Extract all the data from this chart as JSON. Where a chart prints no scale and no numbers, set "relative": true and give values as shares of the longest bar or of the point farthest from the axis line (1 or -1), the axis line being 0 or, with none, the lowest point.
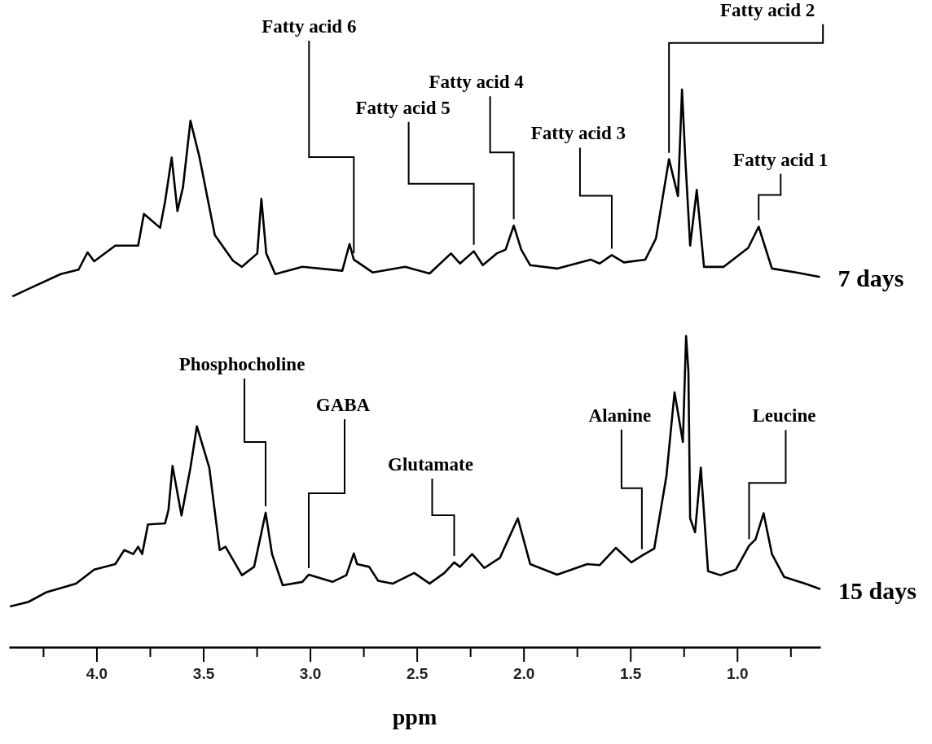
{
  "chart_data": {
    "type": "line",
    "xlabel": "ppm",
    "relative": true,
    "xlim": [
      4.41,
      0.61
    ],
    "xticks": [
      {
        "value": 4.25,
        "label": null
      },
      "4.0",
      {
        "value": 3.75,
        "label": null
      },
      {
        "value": 3.5,
        "label": "3.5"
      },
      {
        "value": 3.25,
        "label": null
      },
      {
        "value": 3.0,
        "label": "3.0"
      },
      {
        "value": 2.75,
        "label": null
      },
      {
        "value": 2.5,
        "label": "2.5"
      },
      {
        "value": 2.25,
        "label": null
      },
      {
        "value": 2.0,
        "label": "2.0"
      },
      {
        "value": 1.75,
        "label": null
      },
      {
        "value": 1.5,
        "label": "1.5"
      },
      {
        "value": 1.25,
        "label": null
      },
      {
        "value": 1.0,
        "label": "1.0"
      },
      {
        "value": 0.75,
        "label": null
      }
    ],
    "marker": "none",
    "line_style": "solid",
    "series": [
      {
        "name": "7 days",
        "color": "#000000",
        "x": [
          4.394,
          4.31,
          4.168,
          4.084,
          4.042,
          4.011,
          3.912,
          3.885,
          3.805,
          3.778,
          3.702,
          3.679,
          3.648,
          3.621,
          3.595,
          3.56,
          3.518,
          3.446,
          3.361,
          3.319,
          3.247,
          3.228,
          3.205,
          3.163,
          3.036,
          2.849,
          2.815,
          2.795,
          2.707,
          2.554,
          2.44,
          2.34,
          2.298,
          2.233,
          2.191,
          2.126,
          2.084,
          2.046,
          2.011,
          1.969,
          1.843,
          1.686,
          1.644,
          1.587,
          1.53,
          1.43,
          1.38,
          1.319,
          1.277,
          1.258,
          1.243,
          1.22,
          1.189,
          1.155,
          1.063,
          0.948,
          0.899,
          0.837,
          0.723,
          0.612
        ],
        "values": [
          0.629,
          0.644,
          0.669,
          0.677,
          0.708,
          0.692,
          0.72,
          0.72,
          0.72,
          0.777,
          0.752,
          0.799,
          0.878,
          0.782,
          0.825,
          0.944,
          0.879,
          0.739,
          0.693,
          0.682,
          0.706,
          0.804,
          0.706,
          0.669,
          0.682,
          0.675,
          0.723,
          0.695,
          0.672,
          0.682,
          0.67,
          0.706,
          0.688,
          0.71,
          0.685,
          0.706,
          0.713,
          0.756,
          0.713,
          0.685,
          0.679,
          0.695,
          0.688,
          0.703,
          0.69,
          0.695,
          0.733,
          0.875,
          0.809,
          1.0,
          0.879,
          0.72,
          0.82,
          0.682,
          0.682,
          0.716,
          0.754,
          0.679,
          0.672,
          0.664
        ]
      },
      {
        "name": "15 days",
        "color": "#000000",
        "x": [
          4.405,
          4.319,
          4.237,
          4.096,
          4.011,
          3.912,
          3.87,
          3.828,
          3.805,
          3.786,
          3.759,
          3.679,
          3.663,
          3.644,
          3.602,
          3.56,
          3.53,
          3.472,
          3.423,
          3.396,
          3.319,
          3.262,
          3.208,
          3.178,
          3.128,
          3.036,
          3.006,
          2.895,
          2.83,
          2.795,
          2.78,
          2.723,
          2.681,
          2.612,
          2.512,
          2.44,
          2.371,
          2.325,
          2.298,
          2.241,
          2.184,
          2.111,
          2.027,
          1.969,
          1.843,
          1.702,
          1.644,
          1.568,
          1.495,
          1.446,
          1.388,
          1.331,
          1.293,
          1.254,
          1.239,
          1.228,
          1.22,
          1.197,
          1.17,
          1.136,
          1.078,
          1.006,
          0.944,
          0.914,
          0.876,
          0.837,
          0.78,
          0.681,
          0.61
        ],
        "values": [
          0.073,
          0.081,
          0.098,
          0.114,
          0.139,
          0.149,
          0.174,
          0.167,
          0.18,
          0.167,
          0.22,
          0.222,
          0.246,
          0.325,
          0.236,
          0.322,
          0.396,
          0.322,
          0.174,
          0.18,
          0.129,
          0.144,
          0.241,
          0.167,
          0.111,
          0.117,
          0.13,
          0.117,
          0.129,
          0.168,
          0.149,
          0.144,
          0.119,
          0.114,
          0.133,
          0.114,
          0.133,
          0.152,
          0.144,
          0.167,
          0.142,
          0.16,
          0.231,
          0.149,
          0.13,
          0.149,
          0.147,
          0.178,
          0.152,
          0.164,
          0.177,
          0.307,
          0.457,
          0.368,
          0.558,
          0.494,
          0.231,
          0.206,
          0.322,
          0.136,
          0.129,
          0.139,
          0.182,
          0.193,
          0.24,
          0.167,
          0.126,
          0.114,
          0.104
        ]
      }
    ],
    "annotations": [
      {
        "text": "Fatty acid 6",
        "x": 2.795,
        "y": 0.695
      },
      {
        "text": "Fatty acid 5",
        "x": 2.233,
        "y": 0.71
      },
      {
        "text": "Fatty acid 4",
        "x": 2.046,
        "y": 0.756
      },
      {
        "text": "Fatty acid 3",
        "x": 1.587,
        "y": 0.703
      },
      {
        "text": "Fatty acid 2",
        "x": 1.319,
        "y": 0.875
      },
      {
        "text": "Fatty acid 1",
        "x": 0.899,
        "y": 0.754
      },
      {
        "text": "Phosphocholine",
        "x": 3.208,
        "y": 0.241
      },
      {
        "text": "GABA",
        "x": 3.006,
        "y": 0.13
      },
      {
        "text": "Glutamate",
        "x": 2.325,
        "y": 0.152
      },
      {
        "text": "Alanine",
        "x": 1.446,
        "y": 0.164
      },
      {
        "text": "Leucine",
        "x": 0.944,
        "y": 0.182
      }
    ]
  }
}
